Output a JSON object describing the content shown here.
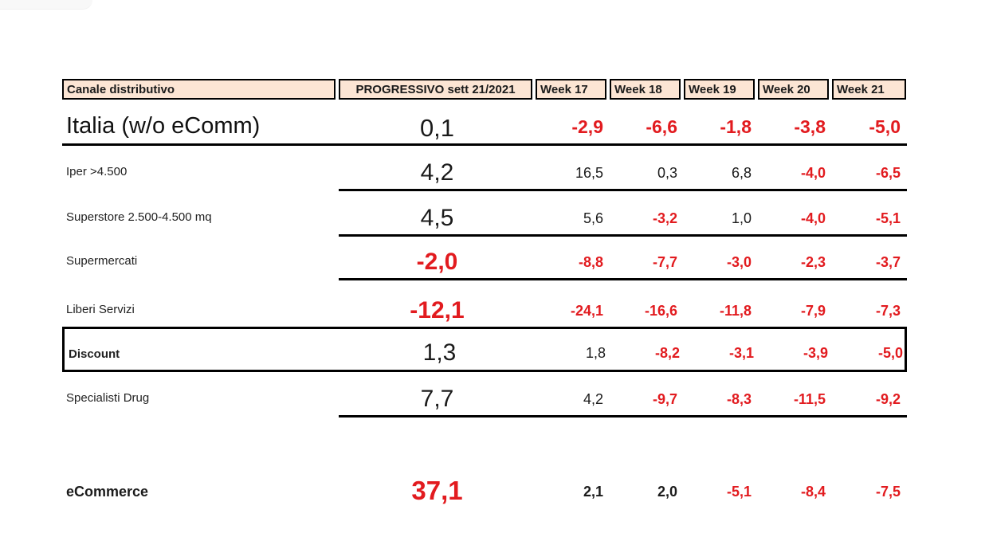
{
  "colors": {
    "negative_red": "#e21b1f",
    "text_black": "#1b1b1b",
    "header_background": "#fce5d4",
    "border_black": "#000000"
  },
  "table": {
    "headers": [
      "Canale distributivo",
      "PROGRESSIVO sett 21/2021",
      "Week 17",
      "Week 18",
      "Week 19",
      "Week 20",
      "Week 21"
    ],
    "rows": [
      {
        "label": "Italia (w/o eComm)",
        "progressivo": "0,1",
        "weeks": [
          "-2,9",
          "-6,6",
          "-1,8",
          "-3,8",
          "-5,0"
        ]
      },
      {
        "label": "Iper >4.500",
        "progressivo": "4,2",
        "weeks": [
          "16,5",
          "0,3",
          "6,8",
          "-4,0",
          "-6,5"
        ]
      },
      {
        "label": "Superstore 2.500-4.500 mq",
        "progressivo": "4,5",
        "weeks": [
          "5,6",
          "-3,2",
          "1,0",
          "-4,0",
          "-5,1"
        ]
      },
      {
        "label": "Supermercati",
        "progressivo": "-2,0",
        "weeks": [
          "-8,8",
          "-7,7",
          "-3,0",
          "-2,3",
          "-3,7"
        ]
      },
      {
        "label": "Liberi Servizi",
        "progressivo": "-12,1",
        "weeks": [
          "-24,1",
          "-16,6",
          "-11,8",
          "-7,9",
          "-7,3"
        ]
      },
      {
        "label": "Discount",
        "progressivo": "1,3",
        "weeks": [
          "1,8",
          "-8,2",
          "-3,1",
          "-3,9",
          "-5,0"
        ]
      },
      {
        "label": "Specialisti Drug",
        "progressivo": "7,7",
        "weeks": [
          "4,2",
          "-9,7",
          "-8,3",
          "-11,5",
          "-9,2"
        ]
      },
      {
        "label": "eCommerce",
        "progressivo": "37,1",
        "weeks": [
          "2,1",
          "2,0",
          "-5,1",
          "-8,4",
          "-7,5"
        ]
      }
    ]
  }
}
